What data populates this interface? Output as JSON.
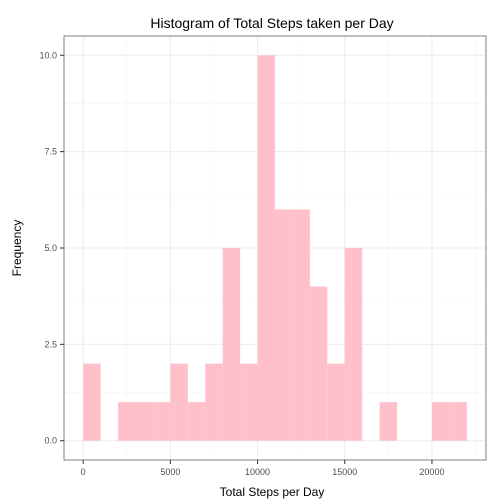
{
  "chart_data": {
    "type": "bar",
    "title": "Histogram of Total Steps taken per Day",
    "xlabel": "Total Steps per Day",
    "ylabel": "Frequency",
    "bin_width": 1000,
    "bins": [
      {
        "start": 0,
        "end": 1000,
        "count": 2
      },
      {
        "start": 2000,
        "end": 3000,
        "count": 1
      },
      {
        "start": 3000,
        "end": 4000,
        "count": 1
      },
      {
        "start": 4000,
        "end": 5000,
        "count": 1
      },
      {
        "start": 5000,
        "end": 6000,
        "count": 2
      },
      {
        "start": 6000,
        "end": 7000,
        "count": 1
      },
      {
        "start": 7000,
        "end": 8000,
        "count": 2
      },
      {
        "start": 8000,
        "end": 9000,
        "count": 5
      },
      {
        "start": 9000,
        "end": 10000,
        "count": 2
      },
      {
        "start": 10000,
        "end": 11000,
        "count": 10
      },
      {
        "start": 11000,
        "end": 12000,
        "count": 6
      },
      {
        "start": 12000,
        "end": 13000,
        "count": 6
      },
      {
        "start": 13000,
        "end": 14000,
        "count": 4
      },
      {
        "start": 14000,
        "end": 15000,
        "count": 2
      },
      {
        "start": 15000,
        "end": 16000,
        "count": 5
      },
      {
        "start": 17000,
        "end": 18000,
        "count": 1
      },
      {
        "start": 20000,
        "end": 21000,
        "count": 1
      },
      {
        "start": 21000,
        "end": 22000,
        "count": 1
      }
    ],
    "xlim": [
      -1100,
      23100
    ],
    "ylim": [
      -0.5,
      10.5
    ],
    "x_ticks": [
      0,
      5000,
      10000,
      15000,
      20000
    ],
    "x_tick_labels": [
      "0",
      "5000",
      "10000",
      "15000",
      "20000"
    ],
    "y_ticks": [
      0,
      2.5,
      5,
      7.5,
      10
    ],
    "y_tick_labels": [
      "0.0",
      "2.5",
      "5.0",
      "7.5",
      "10.0"
    ],
    "grid": true,
    "bar_color": "#ffc0cb",
    "grid_color": "#ebebeb",
    "minor_grid_color": "#f5f5f5",
    "panel_border_color": "#808080"
  }
}
